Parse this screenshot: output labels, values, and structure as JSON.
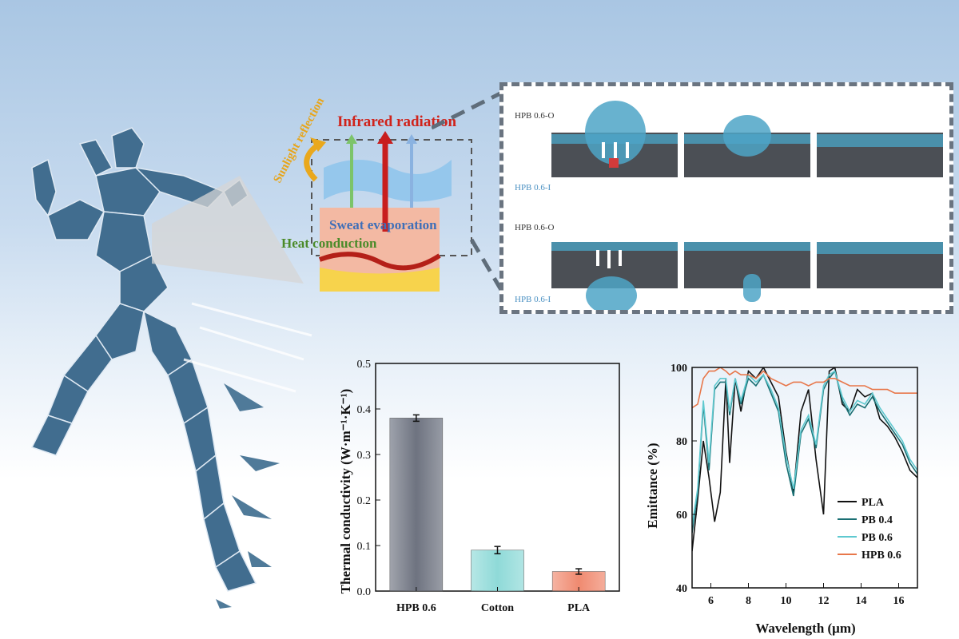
{
  "schematic": {
    "labels": {
      "infrared": "Infrared radiation",
      "sunlight": "Sunlight reflection",
      "sweat": "Sweat evaporation",
      "heat": "Heat conduction"
    },
    "colors": {
      "infrared": "#d0231b",
      "sunlight": "#e7a51b",
      "sweat": "#3f6fb8",
      "heat": "#4b8b2a",
      "fabric": "#8fc4ea",
      "runner": "#3f6b8c"
    }
  },
  "droplet_panel": {
    "rows": [
      {
        "top_label": "HPB 0.6-O",
        "bottom_label": "HPB 0.6-I"
      },
      {
        "top_label": "HPB 0.6-O",
        "bottom_label": "HPB 0.6-I"
      }
    ]
  },
  "chart_data": [
    {
      "type": "bar",
      "title": "",
      "xlabel": "",
      "ylabel": "Thermal conductivity (W·m⁻¹·K⁻¹)",
      "categories": [
        "HPB 0.6",
        "Cotton",
        "PLA"
      ],
      "values": [
        0.38,
        0.09,
        0.043
      ],
      "errors": [
        0.007,
        0.008,
        0.006
      ],
      "colors": [
        "#6e7380",
        "#8fdad8",
        "#f08a70"
      ],
      "ylim": [
        0,
        0.5
      ],
      "yticks": [
        "0.0",
        "0.1",
        "0.2",
        "0.3",
        "0.4",
        "0.5"
      ]
    },
    {
      "type": "line",
      "title": "",
      "xlabel": "Wavelength (μm)",
      "ylabel": "Emittance (%)",
      "xlim": [
        5,
        17
      ],
      "ylim": [
        40,
        100
      ],
      "xticks": [
        "6",
        "8",
        "10",
        "12",
        "14",
        "16"
      ],
      "yticks": [
        "40",
        "60",
        "80",
        "100"
      ],
      "legend_position": "bottom-right",
      "series": [
        {
          "name": "PLA",
          "color": "#111111",
          "x": [
            5,
            5.3,
            5.6,
            5.9,
            6.2,
            6.5,
            6.8,
            7,
            7.3,
            7.6,
            8,
            8.4,
            8.8,
            9.2,
            9.6,
            10,
            10.4,
            10.8,
            11.2,
            11.6,
            12,
            12.3,
            12.6,
            13,
            13.4,
            13.8,
            14.2,
            14.6,
            15,
            15.4,
            15.8,
            16.2,
            16.6,
            17
          ],
          "y": [
            50,
            64,
            80,
            70,
            58,
            66,
            97,
            74,
            97,
            88,
            99,
            97,
            100,
            96,
            92,
            77,
            66,
            88,
            94,
            75,
            60,
            99,
            100,
            90,
            88,
            94,
            92,
            93,
            86,
            84,
            81,
            77,
            72,
            70
          ]
        },
        {
          "name": "PB 0.4",
          "color": "#1a6f73",
          "x": [
            5,
            5.3,
            5.6,
            5.9,
            6.2,
            6.5,
            6.8,
            7,
            7.3,
            7.6,
            8,
            8.4,
            8.8,
            9.2,
            9.6,
            10,
            10.4,
            10.8,
            11.2,
            11.6,
            12,
            12.3,
            12.6,
            13,
            13.4,
            13.8,
            14.2,
            14.6,
            15,
            15.4,
            15.8,
            16.2,
            16.6,
            17
          ],
          "y": [
            55,
            66,
            90,
            72,
            94,
            96,
            96,
            87,
            97,
            90,
            97,
            95,
            98,
            93,
            88,
            74,
            65,
            82,
            86,
            78,
            94,
            97,
            99,
            91,
            87,
            90,
            89,
            92,
            88,
            85,
            82,
            79,
            74,
            71
          ]
        },
        {
          "name": "PB 0.6",
          "color": "#5fc9d0",
          "x": [
            5,
            5.3,
            5.6,
            5.9,
            6.2,
            6.5,
            6.8,
            7,
            7.3,
            7.6,
            8,
            8.4,
            8.8,
            9.2,
            9.6,
            10,
            10.4,
            10.8,
            11.2,
            11.6,
            12,
            12.3,
            12.6,
            13,
            13.4,
            13.8,
            14.2,
            14.6,
            15,
            15.4,
            15.8,
            16.2,
            16.6,
            17
          ],
          "y": [
            57,
            67,
            91,
            74,
            95,
            97,
            97,
            88,
            97,
            91,
            98,
            96,
            98,
            94,
            89,
            76,
            67,
            83,
            87,
            79,
            95,
            98,
            99,
            92,
            88,
            91,
            90,
            93,
            89,
            86,
            83,
            80,
            75,
            72
          ]
        },
        {
          "name": "HPB 0.6",
          "color": "#e8774a",
          "x": [
            5,
            5.3,
            5.6,
            5.9,
            6.2,
            6.5,
            6.8,
            7,
            7.3,
            7.6,
            8,
            8.4,
            8.8,
            9.2,
            9.6,
            10,
            10.4,
            10.8,
            11.2,
            11.6,
            12,
            12.3,
            12.6,
            13,
            13.4,
            13.8,
            14.2,
            14.6,
            15,
            15.4,
            15.8,
            16.2,
            16.6,
            17
          ],
          "y": [
            89,
            90,
            97,
            99,
            99,
            100,
            99,
            98,
            99,
            98,
            98,
            97,
            99,
            97,
            96,
            95,
            96,
            96,
            95,
            96,
            96,
            97,
            97,
            96,
            95,
            95,
            95,
            94,
            94,
            94,
            93,
            93,
            93,
            93
          ]
        }
      ]
    }
  ]
}
